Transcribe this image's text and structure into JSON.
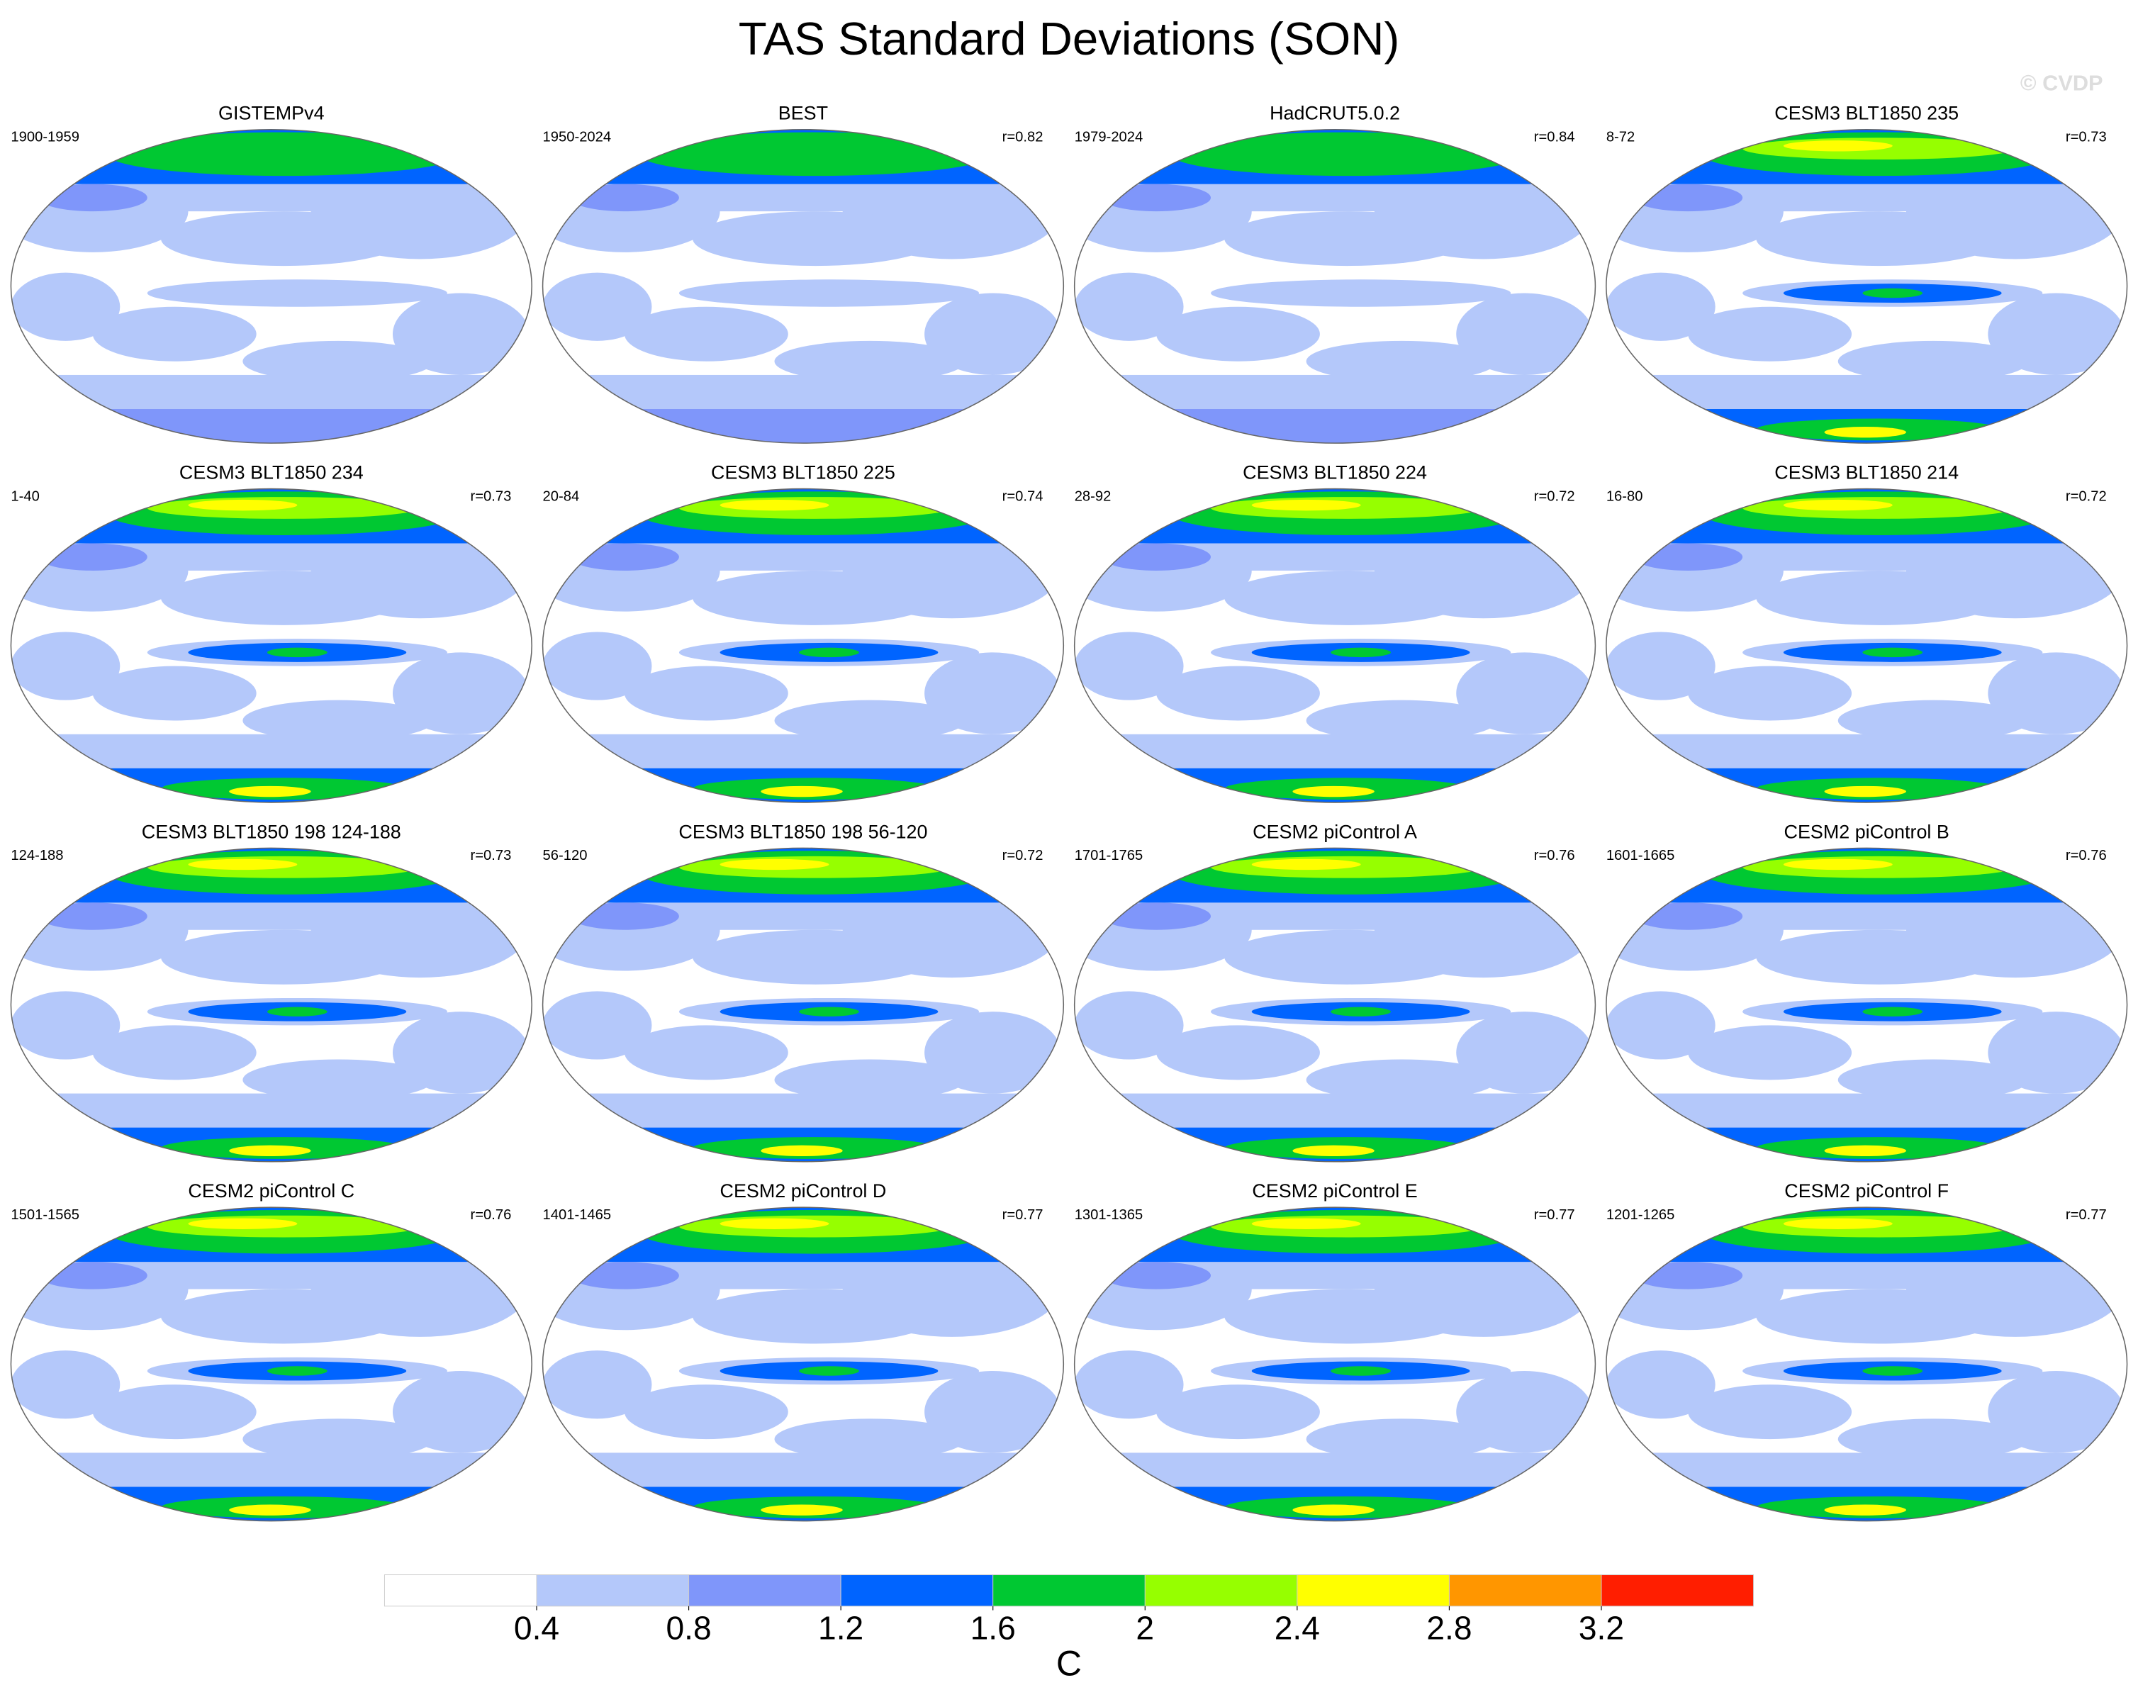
{
  "title": "TAS Standard Deviations (SON)",
  "watermark": "© CVDP",
  "panels": [
    {
      "title": "GISTEMPv4",
      "period": "1900-1959"
    },
    {
      "title": "BEST",
      "period": "1950-2024",
      "r": "r=0.82"
    },
    {
      "title": "HadCRUT5.0.2",
      "period": "1979-2024",
      "r": "r=0.84"
    },
    {
      "title": "CESM3 BLT1850 235",
      "period": "8-72",
      "r": "r=0.73"
    },
    {
      "title": "CESM3 BLT1850 234",
      "period": "1-40",
      "r": "r=0.73"
    },
    {
      "title": "CESM3 BLT1850 225",
      "period": "20-84",
      "r": "r=0.74"
    },
    {
      "title": "CESM3 BLT1850 224",
      "period": "28-92",
      "r": "r=0.72"
    },
    {
      "title": "CESM3 BLT1850 214",
      "period": "16-80",
      "r": "r=0.72"
    },
    {
      "title": "CESM3 BLT1850 198 124-188",
      "period": "124-188",
      "r": "r=0.73"
    },
    {
      "title": "CESM3 BLT1850 198 56-120",
      "period": "56-120",
      "r": "r=0.72"
    },
    {
      "title": "CESM2 piControl A",
      "period": "1701-1765",
      "r": "r=0.76"
    },
    {
      "title": "CESM2 piControl B",
      "period": "1601-1665",
      "r": "r=0.76"
    },
    {
      "title": "CESM2 piControl C",
      "period": "1501-1565",
      "r": "r=0.76"
    },
    {
      "title": "CESM2 piControl D",
      "period": "1401-1465",
      "r": "r=0.77"
    },
    {
      "title": "CESM2 piControl E",
      "period": "1301-1365",
      "r": "r=0.77"
    },
    {
      "title": "CESM2 piControl F",
      "period": "1201-1265",
      "r": "r=0.77"
    }
  ],
  "colorbar": {
    "levels": [
      0.4,
      0.8,
      1.2,
      1.6,
      2,
      2.4,
      2.8,
      3.2
    ],
    "colors": [
      "#ffffff",
      "#b4c8fa",
      "#7f96fa",
      "#0064ff",
      "#00c832",
      "#96ff00",
      "#ffff00",
      "#ff9600",
      "#ff1e00"
    ],
    "unit": "C"
  }
}
